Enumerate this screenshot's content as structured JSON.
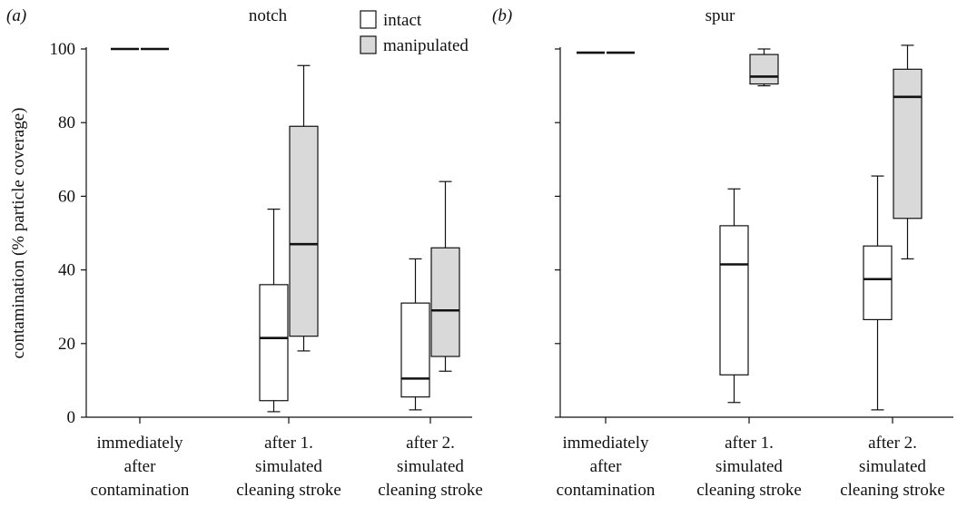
{
  "chart_data": [
    {
      "type": "box",
      "panel_letter": "(a)",
      "title": "notch",
      "ylabel": "contamination (% particle coverage)",
      "ylim": [
        0,
        100
      ],
      "yticks": [
        "0",
        "20",
        "40",
        "60",
        "80",
        "100"
      ],
      "show_tick_labels": true,
      "categories": [
        [
          "immediately",
          "after",
          "contamination"
        ],
        [
          "after 1.",
          "simulated",
          "cleaning stroke"
        ],
        [
          "after 2.",
          "simulated",
          "cleaning stroke"
        ]
      ],
      "series": [
        {
          "name": "intact",
          "color": "#ffffff",
          "boxes": [
            {
              "min": 100,
              "q1": 100,
              "median": 100,
              "q3": 100,
              "max": 100
            },
            {
              "min": 1.5,
              "q1": 4.5,
              "median": 21.5,
              "q3": 36,
              "max": 56.5
            },
            {
              "min": 2,
              "q1": 5.5,
              "median": 10.5,
              "q3": 31,
              "max": 43
            }
          ]
        },
        {
          "name": "manipulated",
          "color": "#d9d9d9",
          "boxes": [
            {
              "min": 100,
              "q1": 100,
              "median": 100,
              "q3": 100,
              "max": 100
            },
            {
              "min": 18,
              "q1": 22,
              "median": 47,
              "q3": 79,
              "max": 95.5
            },
            {
              "min": 12.5,
              "q1": 16.5,
              "median": 29,
              "q3": 46,
              "max": 64
            }
          ]
        }
      ],
      "legend": "top-right",
      "grid": false
    },
    {
      "type": "box",
      "panel_letter": "(b)",
      "title": "spur",
      "ylabel": "",
      "ylim": [
        0,
        100
      ],
      "yticks": [
        "",
        "",
        "",
        "",
        "",
        ""
      ],
      "show_tick_labels": false,
      "categories": [
        [
          "immediately",
          "after",
          "contamination"
        ],
        [
          "after 1.",
          "simulated",
          "cleaning stroke"
        ],
        [
          "after 2.",
          "simulated",
          "cleaning stroke"
        ]
      ],
      "series": [
        {
          "name": "intact",
          "color": "#ffffff",
          "boxes": [
            {
              "min": 99,
              "q1": 99,
              "median": 99,
              "q3": 99,
              "max": 99
            },
            {
              "min": 4,
              "q1": 11.5,
              "median": 41.5,
              "q3": 52,
              "max": 62
            },
            {
              "min": 2,
              "q1": 26.5,
              "median": 37.5,
              "q3": 46.5,
              "max": 65.5
            }
          ]
        },
        {
          "name": "manipulated",
          "color": "#d9d9d9",
          "boxes": [
            {
              "min": 99,
              "q1": 99,
              "median": 99,
              "q3": 99,
              "max": 99
            },
            {
              "min": 90,
              "q1": 90.5,
              "median": 92.5,
              "q3": 98.5,
              "max": 100
            },
            {
              "min": 43,
              "q1": 54,
              "median": 87,
              "q3": 94.5,
              "max": 101
            }
          ]
        }
      ],
      "grid": false
    }
  ]
}
